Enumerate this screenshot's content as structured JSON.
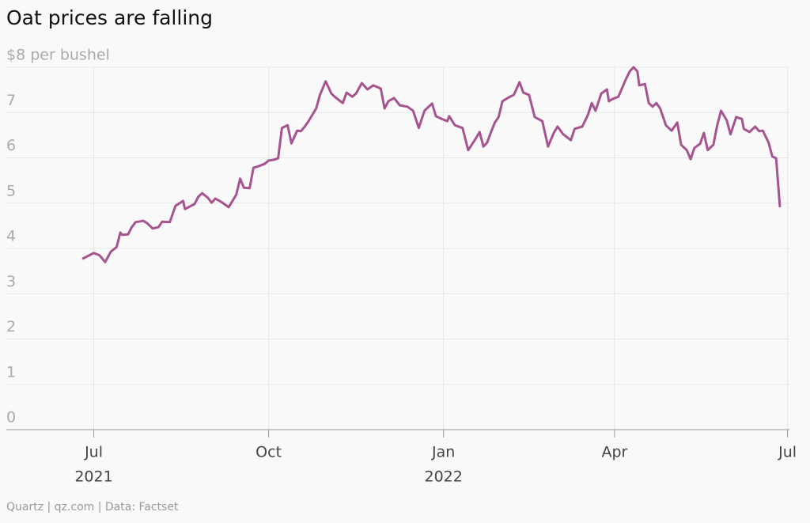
{
  "chart_data": {
    "type": "line",
    "title": "Oat prices are falling",
    "source": "Quartz | qz.com | Data: Factset",
    "xlim": [
      "2021-05-16",
      "2022-07-02"
    ],
    "xticks": [
      {
        "value": "2021-07-01",
        "label": "Jul"
      },
      {
        "value": "2021-10-01",
        "label": "Oct"
      },
      {
        "value": "2022-01-01",
        "label": "Jan"
      },
      {
        "value": "2022-04-01",
        "label": "Apr"
      },
      {
        "value": "2022-07-01",
        "label": "Jul"
      }
    ],
    "xtick_years": [
      {
        "value": "2021-07-01",
        "label": "2021"
      },
      {
        "value": "2022-01-01",
        "label": "2022"
      }
    ],
    "ylim": [
      0,
      8
    ],
    "yticks": [
      0,
      1,
      2,
      3,
      4,
      5,
      6,
      7,
      {
        "value": 8,
        "label": "$8 per bushel"
      }
    ],
    "grid": true,
    "x": [
      "2021-06-25",
      "2021-07-01",
      "2021-07-04",
      "2021-07-07",
      "2021-07-10",
      "2021-07-13",
      "2021-07-15",
      "2021-07-16",
      "2021-07-19",
      "2021-07-21",
      "2021-07-23",
      "2021-07-27",
      "2021-07-29",
      "2021-08-01",
      "2021-08-04",
      "2021-08-06",
      "2021-08-10",
      "2021-08-13",
      "2021-08-17",
      "2021-08-18",
      "2021-08-23",
      "2021-08-25",
      "2021-08-27",
      "2021-08-30",
      "2021-09-01",
      "2021-09-03",
      "2021-09-06",
      "2021-09-10",
      "2021-09-14",
      "2021-09-16",
      "2021-09-18",
      "2021-09-21",
      "2021-09-23",
      "2021-09-26",
      "2021-09-29",
      "2021-10-01",
      "2021-10-04",
      "2021-10-06",
      "2021-10-08",
      "2021-10-11",
      "2021-10-13",
      "2021-10-16",
      "2021-10-18",
      "2021-10-20",
      "2021-10-22",
      "2021-10-26",
      "2021-10-28",
      "2021-10-31",
      "2021-11-03",
      "2021-11-05",
      "2021-11-09",
      "2021-11-11",
      "2021-11-14",
      "2021-11-16",
      "2021-11-19",
      "2021-11-22",
      "2021-11-25",
      "2021-11-29",
      "2021-12-01",
      "2021-12-03",
      "2021-12-06",
      "2021-12-09",
      "2021-12-13",
      "2021-12-16",
      "2021-12-19",
      "2021-12-22",
      "2021-12-26",
      "2021-12-28",
      "2021-12-31",
      "2022-01-03",
      "2022-01-04",
      "2022-01-07",
      "2022-01-11",
      "2022-01-14",
      "2022-01-18",
      "2022-01-20",
      "2022-01-22",
      "2022-01-24",
      "2022-01-26",
      "2022-01-28",
      "2022-01-30",
      "2022-02-01",
      "2022-02-05",
      "2022-02-07",
      "2022-02-10",
      "2022-02-12",
      "2022-02-15",
      "2022-02-18",
      "2022-02-22",
      "2022-02-25",
      "2022-02-28",
      "2022-03-02",
      "2022-03-05",
      "2022-03-09",
      "2022-03-11",
      "2022-03-15",
      "2022-03-18",
      "2022-03-20",
      "2022-03-22",
      "2022-03-25",
      "2022-03-28",
      "2022-03-29",
      "2022-03-31",
      "2022-04-03",
      "2022-04-07",
      "2022-04-09",
      "2022-04-11",
      "2022-04-13",
      "2022-04-14",
      "2022-04-17",
      "2022-04-19",
      "2022-04-21",
      "2022-04-23",
      "2022-04-25",
      "2022-04-28",
      "2022-05-01",
      "2022-05-04",
      "2022-05-06",
      "2022-05-09",
      "2022-05-11",
      "2022-05-13",
      "2022-05-16",
      "2022-05-18",
      "2022-05-20",
      "2022-05-23",
      "2022-05-25",
      "2022-05-27",
      "2022-05-30",
      "2022-06-01",
      "2022-06-04",
      "2022-06-07",
      "2022-06-08",
      "2022-06-11",
      "2022-06-14",
      "2022-06-16",
      "2022-06-18",
      "2022-06-21",
      "2022-06-23",
      "2022-06-25",
      "2022-06-27"
    ],
    "series": [
      {
        "color": "#a5548f",
        "values": [
          3.77,
          3.9,
          3.85,
          3.7,
          3.93,
          4.03,
          4.35,
          4.3,
          4.31,
          4.47,
          4.58,
          4.61,
          4.56,
          4.44,
          4.47,
          4.59,
          4.58,
          4.94,
          5.05,
          4.87,
          4.98,
          5.14,
          5.22,
          5.12,
          5.01,
          5.1,
          5.03,
          4.91,
          5.19,
          5.54,
          5.34,
          5.33,
          5.78,
          5.82,
          5.87,
          5.94,
          5.96,
          5.99,
          6.66,
          6.72,
          6.32,
          6.6,
          6.59,
          6.69,
          6.81,
          7.09,
          7.39,
          7.69,
          7.42,
          7.34,
          7.21,
          7.44,
          7.35,
          7.42,
          7.65,
          7.51,
          7.6,
          7.53,
          7.09,
          7.25,
          7.32,
          7.16,
          7.13,
          7.04,
          6.66,
          7.04,
          7.2,
          6.92,
          6.86,
          6.81,
          6.92,
          6.72,
          6.66,
          6.17,
          6.43,
          6.57,
          6.25,
          6.34,
          6.57,
          6.78,
          6.9,
          7.25,
          7.35,
          7.39,
          7.67,
          7.44,
          7.39,
          6.9,
          6.81,
          6.25,
          6.55,
          6.69,
          6.52,
          6.39,
          6.64,
          6.69,
          6.95,
          7.21,
          7.04,
          7.42,
          7.51,
          7.25,
          7.3,
          7.35,
          7.74,
          7.91,
          8.0,
          7.91,
          7.6,
          7.63,
          7.21,
          7.13,
          7.21,
          7.09,
          6.72,
          6.6,
          6.78,
          6.29,
          6.17,
          5.97,
          6.22,
          6.31,
          6.55,
          6.17,
          6.29,
          6.72,
          7.04,
          6.83,
          6.52,
          6.9,
          6.86,
          6.64,
          6.57,
          6.69,
          6.59,
          6.6,
          6.34,
          6.03,
          5.99,
          4.91
        ]
      }
    ]
  }
}
